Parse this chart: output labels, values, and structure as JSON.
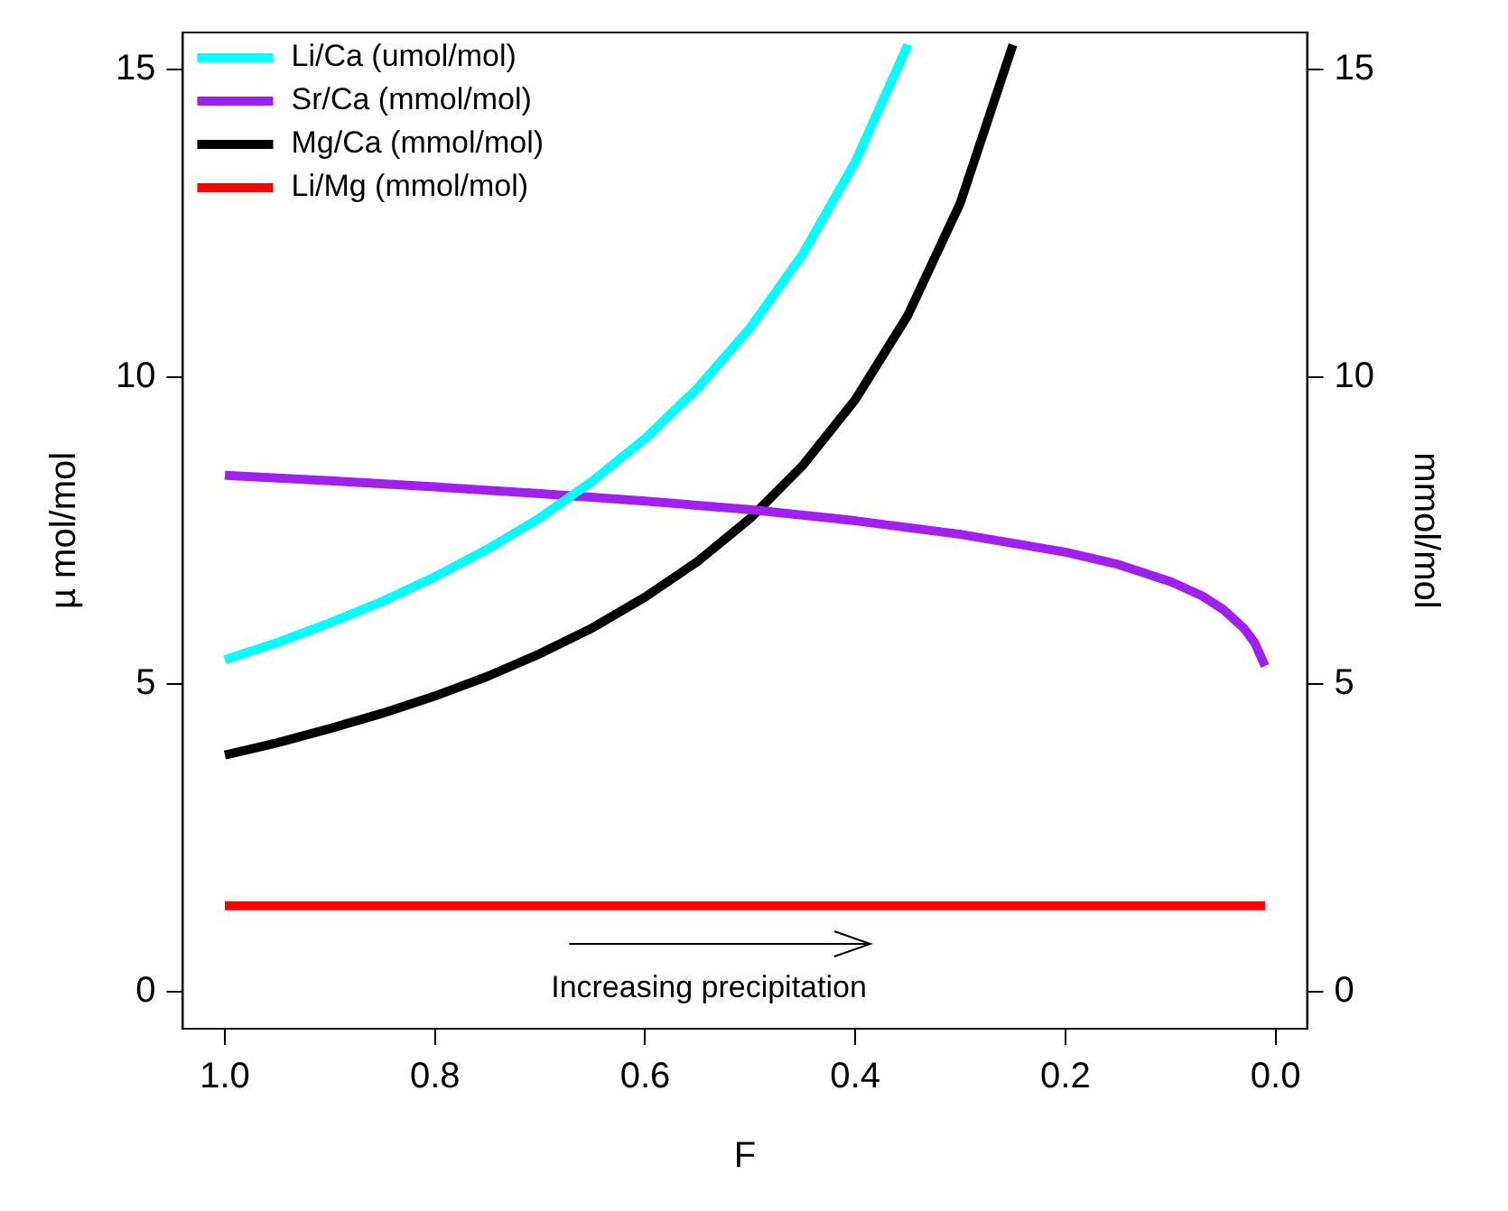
{
  "chart_data": {
    "type": "line",
    "xlabel": "F",
    "ylabel": "µ mol/mol",
    "y2label": "mmol/mol",
    "xlim": [
      1.04,
      -0.03
    ],
    "xticks": [
      {
        "value": 1,
        "label": "1.0"
      },
      0.8,
      0.6,
      0.4,
      0.2,
      {
        "value": 0,
        "label": "0.0"
      }
    ],
    "ylim": [
      -0.6,
      15.6
    ],
    "yticks": [
      0,
      5,
      10,
      15
    ],
    "y2lim": [
      -0.6,
      15.6
    ],
    "y2ticks": [
      0,
      5,
      10,
      15
    ],
    "grid": false,
    "legend": "top left",
    "marker": "none",
    "line_style": "solid",
    "annotations": [
      "Increasing precipitation"
    ],
    "series": [
      {
        "name": "Li/Ca (umol/mol)",
        "color": "#00ffff",
        "x": [
          1,
          0.95,
          0.9,
          0.85,
          0.8,
          0.75,
          0.7,
          0.65,
          0.6,
          0.55,
          0.5,
          0.45,
          0.4,
          0.35
        ],
        "values": [
          5.4,
          5.68,
          6.0,
          6.35,
          6.75,
          7.2,
          7.71,
          8.31,
          9.0,
          9.82,
          10.8,
          12.0,
          13.5,
          15.4
        ]
      },
      {
        "name": "Sr/Ca (mmol/mol)",
        "color": "#a020f0",
        "axis": "y2",
        "x": [
          1,
          0.9,
          0.8,
          0.7,
          0.6,
          0.5,
          0.4,
          0.3,
          0.2,
          0.15,
          0.1,
          0.07,
          0.05,
          0.03,
          0.02,
          0.01
        ],
        "values": [
          8.4,
          8.31,
          8.21,
          8.1,
          7.98,
          7.84,
          7.66,
          7.44,
          7.15,
          6.95,
          6.67,
          6.44,
          6.22,
          5.91,
          5.68,
          5.3
        ]
      },
      {
        "name": "Mg/Ca (mmol/mol)",
        "color": "#000000",
        "axis": "y2",
        "x": [
          1,
          0.95,
          0.9,
          0.85,
          0.8,
          0.75,
          0.7,
          0.65,
          0.6,
          0.55,
          0.5,
          0.45,
          0.4,
          0.35,
          0.3,
          0.25
        ],
        "values": [
          3.85,
          4.05,
          4.28,
          4.53,
          4.81,
          5.13,
          5.5,
          5.92,
          6.42,
          7.0,
          7.7,
          8.56,
          9.63,
          11.0,
          12.83,
          15.4
        ]
      },
      {
        "name": "Li/Mg (mmol/mol)",
        "color": "#ff0000",
        "axis": "y2",
        "x": [
          1,
          0.01
        ],
        "values": [
          1.4,
          1.4
        ]
      }
    ]
  }
}
